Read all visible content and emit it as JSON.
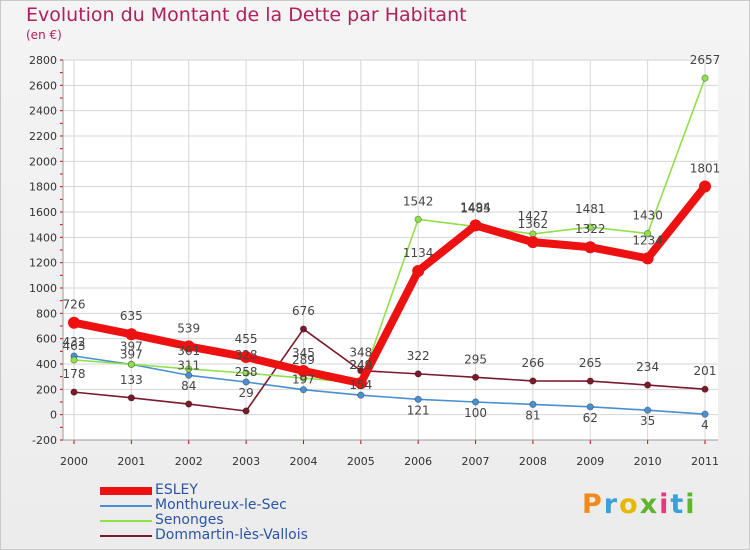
{
  "header": {
    "title": "Evolution du Montant de la Dette par Habitant",
    "subtitle": "(en €)"
  },
  "logo": {
    "text": "Proxiti",
    "colors": [
      "#f08a1c",
      "#3aa0d8",
      "#e6b800",
      "#5fb52d",
      "#e23b7c",
      "#3aa0d8",
      "#5fb52d"
    ]
  },
  "chart_data": {
    "type": "line",
    "categories": [
      "2000",
      "2001",
      "2002",
      "2003",
      "2004",
      "2005",
      "2006",
      "2007",
      "2008",
      "2009",
      "2010",
      "2011"
    ],
    "ylim": [
      -200,
      2800
    ],
    "yticks": [
      -200,
      0,
      200,
      400,
      600,
      800,
      1000,
      1200,
      1400,
      1600,
      1800,
      2000,
      2200,
      2400,
      2600,
      2800
    ],
    "grid": true,
    "legend_position": "bottom-left",
    "series": [
      {
        "name": "ESLEY",
        "color": "#ee1111",
        "values": [
          726,
          635,
          539,
          455,
          345,
          249,
          1134,
          1494,
          1362,
          1322,
          1234,
          1801
        ]
      },
      {
        "name": "Monthureux-le-Sec",
        "color": "#4a8fd0",
        "values": [
          463,
          397,
          311,
          258,
          197,
          154,
          121,
          100,
          81,
          62,
          35,
          4
        ]
      },
      {
        "name": "Senonges",
        "color": "#8fe04a",
        "values": [
          432,
          397,
          361,
          328,
          289,
          249,
          1542,
          1485,
          1427,
          1481,
          1430,
          2657
        ]
      },
      {
        "name": "Dommartin-lès-Vallois",
        "color": "#7a1a2a",
        "values": [
          178,
          133,
          84,
          29,
          676,
          348,
          322,
          295,
          266,
          265,
          234,
          201
        ]
      }
    ]
  }
}
